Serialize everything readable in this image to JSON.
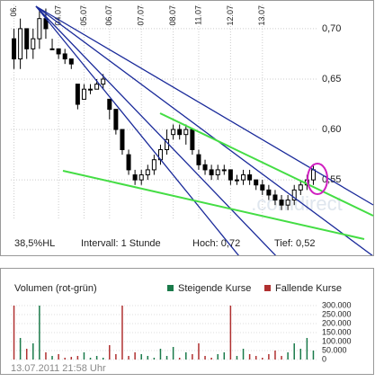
{
  "chart_data": [
    {
      "type": "ohlc",
      "categories": [
        "06.",
        null,
        null,
        null,
        null,
        null,
        null,
        "04.07",
        null,
        null,
        null,
        "05.07",
        null,
        null,
        null,
        "06.07",
        null,
        null,
        null,
        null,
        "07.07",
        null,
        null,
        null,
        null,
        "08.07",
        null,
        null,
        null,
        "11.07",
        null,
        null,
        null,
        null,
        "12.07",
        null,
        null,
        null,
        null,
        "13.07",
        null,
        null,
        null,
        null,
        null,
        null,
        null,
        null
      ],
      "open": [
        0.69,
        0.67,
        0.7,
        0.68,
        0.69,
        0.71,
        0.68,
        0.68,
        0.675,
        0.67,
        0.645,
        0.63,
        0.64,
        0.64,
        0.645,
        0.63,
        0.62,
        0.6,
        0.575,
        0.555,
        0.55,
        0.555,
        0.56,
        0.57,
        0.58,
        0.595,
        0.6,
        0.595,
        0.6,
        0.575,
        0.565,
        0.56,
        0.555,
        0.56,
        0.56,
        0.55,
        0.55,
        0.555,
        0.55,
        0.545,
        0.54,
        0.535,
        0.53,
        0.525,
        0.53,
        0.54,
        0.545,
        0.55
      ],
      "high": [
        0.7,
        0.71,
        0.7,
        0.7,
        0.72,
        0.72,
        0.69,
        0.68,
        0.68,
        0.67,
        0.645,
        0.645,
        0.645,
        0.65,
        0.655,
        0.63,
        0.62,
        0.6,
        0.58,
        0.56,
        0.56,
        0.565,
        0.575,
        0.585,
        0.6,
        0.605,
        0.605,
        0.605,
        0.6,
        0.58,
        0.57,
        0.565,
        0.565,
        0.565,
        0.56,
        0.555,
        0.56,
        0.56,
        0.55,
        0.55,
        0.545,
        0.54,
        0.535,
        0.535,
        0.545,
        0.55,
        0.555,
        0.565
      ],
      "low": [
        0.66,
        0.66,
        0.67,
        0.67,
        0.68,
        0.69,
        0.68,
        0.67,
        0.665,
        0.66,
        0.62,
        0.63,
        0.635,
        0.64,
        0.64,
        0.61,
        0.595,
        0.575,
        0.555,
        0.545,
        0.545,
        0.55,
        0.555,
        0.565,
        0.575,
        0.59,
        0.59,
        0.585,
        0.575,
        0.56,
        0.555,
        0.55,
        0.55,
        0.555,
        0.545,
        0.545,
        0.545,
        0.545,
        0.54,
        0.535,
        0.53,
        0.525,
        0.52,
        0.52,
        0.525,
        0.535,
        0.54,
        0.545
      ],
      "close": [
        0.67,
        0.7,
        0.68,
        0.69,
        0.71,
        0.7,
        0.68,
        0.675,
        0.67,
        0.665,
        0.625,
        0.64,
        0.64,
        0.645,
        0.65,
        0.62,
        0.6,
        0.58,
        0.56,
        0.55,
        0.555,
        0.56,
        0.57,
        0.58,
        0.59,
        0.6,
        0.595,
        0.6,
        0.58,
        0.565,
        0.56,
        0.555,
        0.56,
        0.56,
        0.55,
        0.55,
        0.555,
        0.55,
        0.545,
        0.54,
        0.535,
        0.53,
        0.525,
        0.53,
        0.54,
        0.545,
        0.55,
        0.56
      ],
      "ylim": [
        0.51,
        0.724
      ],
      "yticks": [
        {
          "value": 0.7,
          "label": "0,70"
        },
        {
          "value": 0.65,
          "label": "0,65"
        },
        {
          "value": 0.6,
          "label": "0,60"
        },
        {
          "value": 0.55,
          "label": "0,55"
        }
      ],
      "up_color": "#000000",
      "down_color": "#000000",
      "annotations": [
        "38,5%HL",
        "Intervall: 1 Stunde",
        "Hoch: 0,72",
        "Tief: 0,52"
      ],
      "watermark": ".comdirect"
    },
    {
      "type": "bar",
      "title": "Volumen (rot-grün)",
      "series": [
        {
          "name": "Steigende Kurse",
          "color": "#1a7a4a"
        },
        {
          "name": "Fallende Kurse",
          "color": "#b03030"
        }
      ],
      "values": [
        300000,
        120000,
        60000,
        90000,
        300000,
        40000,
        20000,
        30000,
        10000,
        15000,
        20000,
        40000,
        10000,
        20000,
        10000,
        80000,
        30000,
        300000,
        20000,
        40000,
        30000,
        20000,
        10000,
        60000,
        20000,
        70000,
        10000,
        40000,
        30000,
        90000,
        20000,
        10000,
        30000,
        40000,
        300000,
        20000,
        60000,
        30000,
        20000,
        10000,
        30000,
        50000,
        20000,
        40000,
        90000,
        60000,
        120000,
        50000
      ],
      "ylim": [
        0,
        300000
      ],
      "yticks": [
        {
          "value": 300000,
          "label": "300.000"
        },
        {
          "value": 250000,
          "label": "250.000"
        },
        {
          "value": 200000,
          "label": "200.000"
        },
        {
          "value": 150000,
          "label": "150.000"
        },
        {
          "value": 100000,
          "label": "100.000"
        },
        {
          "value": 50000,
          "label": "50.000"
        },
        0
      ],
      "footer": "13.07.2011 21:58 Uhr"
    }
  ]
}
